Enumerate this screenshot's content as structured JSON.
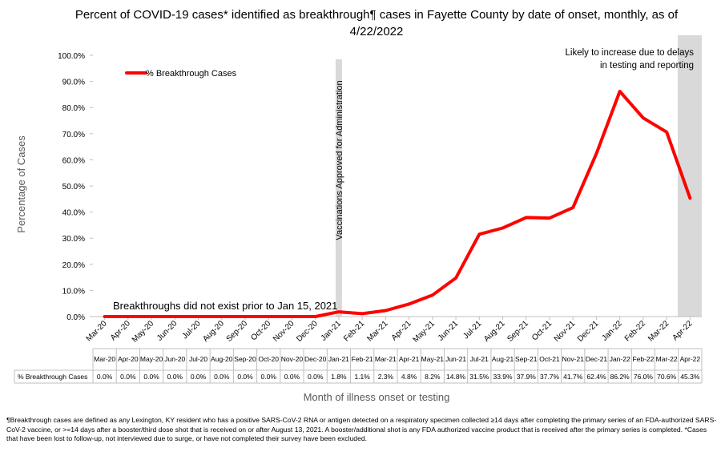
{
  "title": "Percent of COVID-19 cases* identified as breakthrough¶ cases in Fayette County by date of onset, monthly, as of 4/22/2022",
  "footnote": "¶Breakthrough cases are defined as any Lexington, KY resident who has a positive SARS-CoV-2 RNA or antigen detected on a respiratory specimen collected ≥14 days after completing the primary series of an FDA-authorized SARS-CoV-2 vaccine, or >=14 days after a booster/third dose shot that is received on or after August 13, 2021.  A booster/additional shot is any FDA authorized vaccine product that is received after the primary series is completed. *Cases that have been lost to follow-up, not interviewed due to surge, or have not completed their survey have been excluded.",
  "chart_data": {
    "type": "line",
    "title": "Percent of COVID-19 cases* identified as breakthrough¶ cases in Fayette County by date of onset, monthly, as of 4/22/2022",
    "xlabel": "Month of illness onset or testing",
    "ylabel": "Percentage of Cases",
    "ylim": [
      0,
      100
    ],
    "yticks": [
      "0.0%",
      "10.0%",
      "20.0%",
      "30.0%",
      "40.0%",
      "50.0%",
      "60.0%",
      "70.0%",
      "80.0%",
      "90.0%",
      "100.0%"
    ],
    "categories": [
      "Mar-20",
      "Apr-20",
      "May-20",
      "Jun-20",
      "Jul-20",
      "Aug-20",
      "Sep-20",
      "Oct-20",
      "Nov-20",
      "Dec-20",
      "Jan-21",
      "Feb-21",
      "Mar-21",
      "Apr-21",
      "May-21",
      "Jun-21",
      "Jul-21",
      "Aug-21",
      "Sep-21",
      "Oct-21",
      "Nov-21",
      "Dec-21",
      "Jan-22",
      "Feb-22",
      "Mar-22",
      "Apr-22"
    ],
    "table_categories": [
      "Mar-20",
      "Apr-20",
      "May-20",
      "Jun-20",
      "Jul-20",
      "Aug-20",
      "Sep-20",
      "Oct-20",
      "Nov-20",
      "Dec-20",
      "Jan-21",
      "Feb-21",
      "Mar-21",
      "Apr-21",
      "May-21",
      "Jun-21",
      "Jul-21",
      "Aug-21",
      "Sep-21",
      "Oct-21",
      "Nov-21",
      "Dec-21",
      "Jan-22",
      "Feb-22",
      "Mar-22",
      "Apr-22"
    ],
    "series": [
      {
        "name": "% Breakthrough Cases",
        "values": [
          0.0,
          0.0,
          0.0,
          0.0,
          0.0,
          0.0,
          0.0,
          0.0,
          0.0,
          0.0,
          1.8,
          1.1,
          2.3,
          4.8,
          8.2,
          14.8,
          31.5,
          33.9,
          37.9,
          37.7,
          41.7,
          62.4,
          86.2,
          76.0,
          70.6,
          45.3
        ],
        "labels": [
          "0.0%",
          "0.0%",
          "0.0%",
          "0.0%",
          "0.0%",
          "0.0%",
          "0.0%",
          "0.0%",
          "0.0%",
          "0.0%",
          "1.8%",
          "1.1%",
          "2.3%",
          "4.8%",
          "8.2%",
          "14.8%",
          "31.5%",
          "33.9%",
          "37.9%",
          "37.7%",
          "41.7%",
          "62.4%",
          "86.2%",
          "76.0%",
          "70.6%",
          "45.3%"
        ],
        "color": "#ff0000"
      }
    ],
    "legend": "top-left",
    "grid": false,
    "annotations": {
      "vaccination": "Vaccinations Approved for Administration",
      "pre_jan": "Breakthroughs did not exist prior to Jan 15, 2021",
      "recent": "Likely to increase due to delays in testing and reporting"
    },
    "shaded_color": "#d9d9d9",
    "axis_color": "#595959"
  }
}
